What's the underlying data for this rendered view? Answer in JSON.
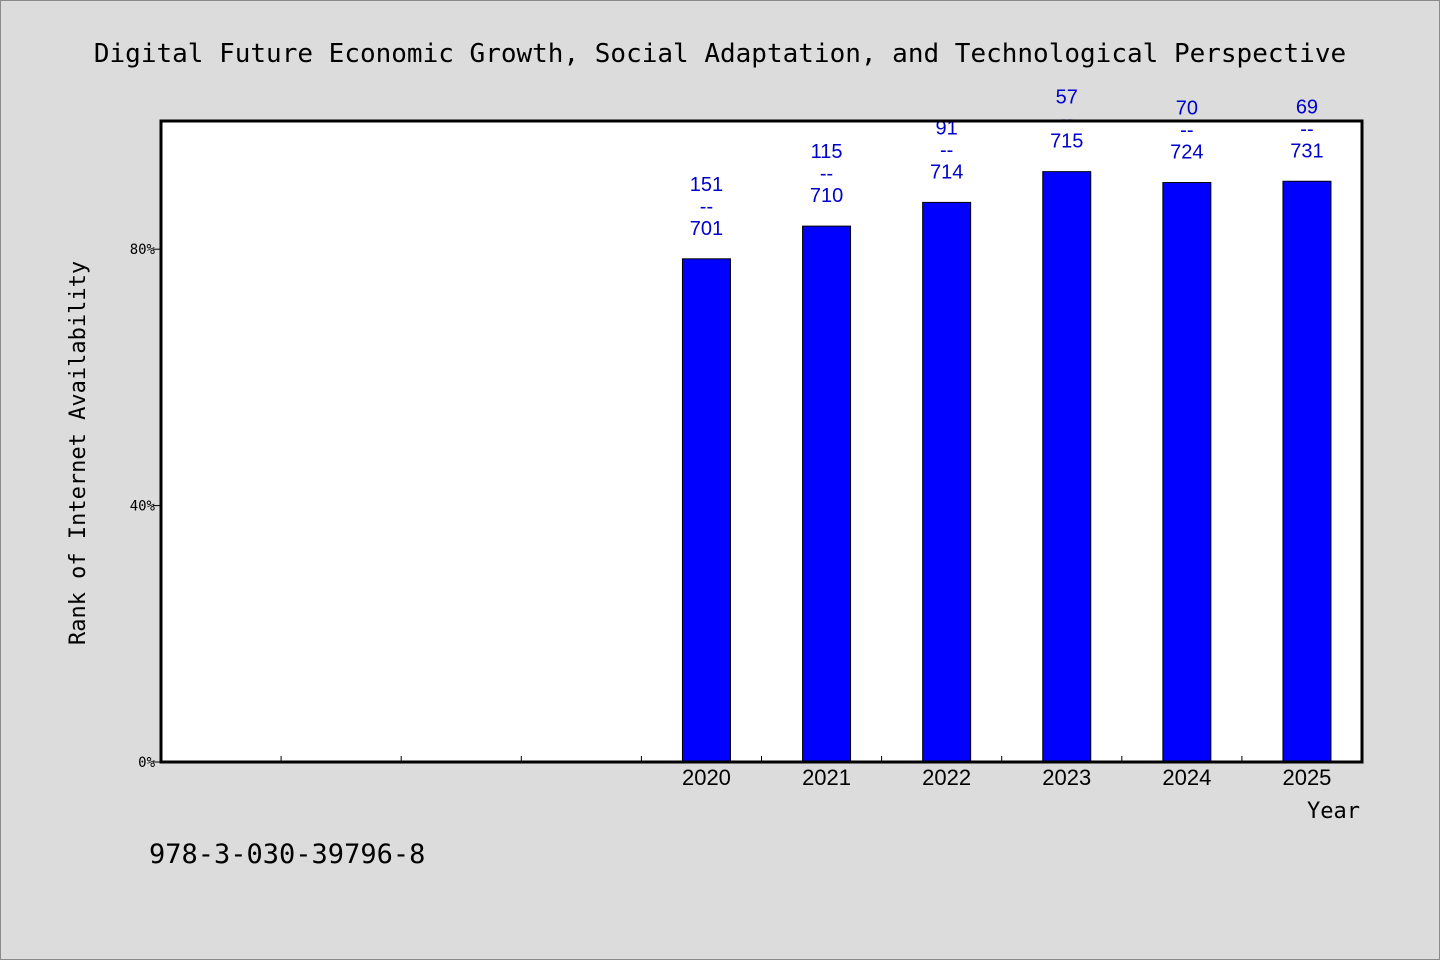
{
  "chart_data": {
    "type": "bar",
    "title": "Digital Future Economic Growth, Social Adaptation, and Technological Perspective",
    "xlabel": "Year",
    "ylabel": "Rank of Internet Availability",
    "categories": [
      "",
      "",
      "",
      "",
      "2020",
      "2021",
      "2022",
      "2023",
      "2024",
      "2025"
    ],
    "values": [
      null,
      null,
      null,
      null,
      78.5,
      83.6,
      87.3,
      92.1,
      90.4,
      90.6
    ],
    "data_labels": [
      null,
      null,
      null,
      null,
      {
        "top": "151",
        "sep": "--",
        "bottom": "701"
      },
      {
        "top": "115",
        "sep": "--",
        "bottom": "710"
      },
      {
        "top": "91",
        "sep": "--",
        "bottom": "714"
      },
      {
        "top": "57",
        "sep": "--",
        "bottom": "715"
      },
      {
        "top": "70",
        "sep": "--",
        "bottom": "724"
      },
      {
        "top": "69",
        "sep": "--",
        "bottom": "731"
      }
    ],
    "ylim": [
      0,
      100
    ],
    "yticks": [
      0,
      40,
      80
    ],
    "ytick_labels": [
      "0%",
      "40%",
      "80%"
    ],
    "grid": false,
    "bar_color": "#0000ff",
    "label_color": "#0000cc",
    "background": "#dcdcdc",
    "plot_background": "#ffffff"
  },
  "footnote": "978-3-030-39796-8"
}
